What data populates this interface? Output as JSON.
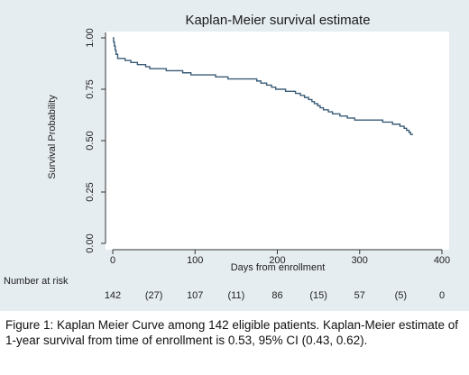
{
  "caption": "Figure 1: Kaplan Meier Curve among 142 eligible patients. Kaplan-Meier estimate of 1-year survival from time of enrollment is 0.53, 95% CI (0.43, 0.62).",
  "colors": {
    "background": "#e6edf1",
    "plot_area": "#ffffff",
    "curve": "#3b5d78"
  },
  "chart_data": {
    "type": "line",
    "title": "Kaplan-Meier survival estimate",
    "xlabel": "Days from enrollment",
    "ylabel": "Survival Probability",
    "xlim": [
      0,
      400
    ],
    "ylim": [
      0,
      1
    ],
    "x_ticks": [
      0,
      100,
      200,
      300,
      400
    ],
    "y_ticks": [
      "0.00",
      "0.25",
      "0.50",
      "0.75",
      "1.00"
    ],
    "grid": false,
    "series": [
      {
        "steps": [
          [
            0,
            1.0
          ],
          [
            1,
            0.98
          ],
          [
            2,
            0.96
          ],
          [
            3,
            0.94
          ],
          [
            4,
            0.92
          ],
          [
            6,
            0.9
          ],
          [
            15,
            0.89
          ],
          [
            22,
            0.88
          ],
          [
            30,
            0.87
          ],
          [
            40,
            0.86
          ],
          [
            45,
            0.85
          ],
          [
            65,
            0.84
          ],
          [
            85,
            0.83
          ],
          [
            95,
            0.82
          ],
          [
            125,
            0.81
          ],
          [
            140,
            0.8
          ],
          [
            175,
            0.79
          ],
          [
            180,
            0.78
          ],
          [
            187,
            0.77
          ],
          [
            193,
            0.76
          ],
          [
            198,
            0.75
          ],
          [
            210,
            0.74
          ],
          [
            222,
            0.73
          ],
          [
            228,
            0.72
          ],
          [
            233,
            0.71
          ],
          [
            238,
            0.7
          ],
          [
            242,
            0.69
          ],
          [
            245,
            0.68
          ],
          [
            249,
            0.67
          ],
          [
            252,
            0.66
          ],
          [
            256,
            0.65
          ],
          [
            262,
            0.64
          ],
          [
            267,
            0.63
          ],
          [
            276,
            0.62
          ],
          [
            285,
            0.61
          ],
          [
            294,
            0.6
          ],
          [
            328,
            0.59
          ],
          [
            340,
            0.58
          ],
          [
            349,
            0.57
          ],
          [
            354,
            0.56
          ],
          [
            357,
            0.55
          ],
          [
            360,
            0.54
          ],
          [
            362,
            0.53
          ],
          [
            365,
            0.53
          ]
        ]
      }
    ],
    "risk_table": {
      "label": "Number at risk",
      "entries": [
        {
          "x": 0,
          "text": "142"
        },
        {
          "x": 50,
          "text": "(27)"
        },
        {
          "x": 100,
          "text": "107"
        },
        {
          "x": 150,
          "text": "(11)"
        },
        {
          "x": 200,
          "text": "86"
        },
        {
          "x": 250,
          "text": "(15)"
        },
        {
          "x": 300,
          "text": "57"
        },
        {
          "x": 350,
          "text": "(5)"
        },
        {
          "x": 400,
          "text": "0"
        }
      ]
    }
  }
}
